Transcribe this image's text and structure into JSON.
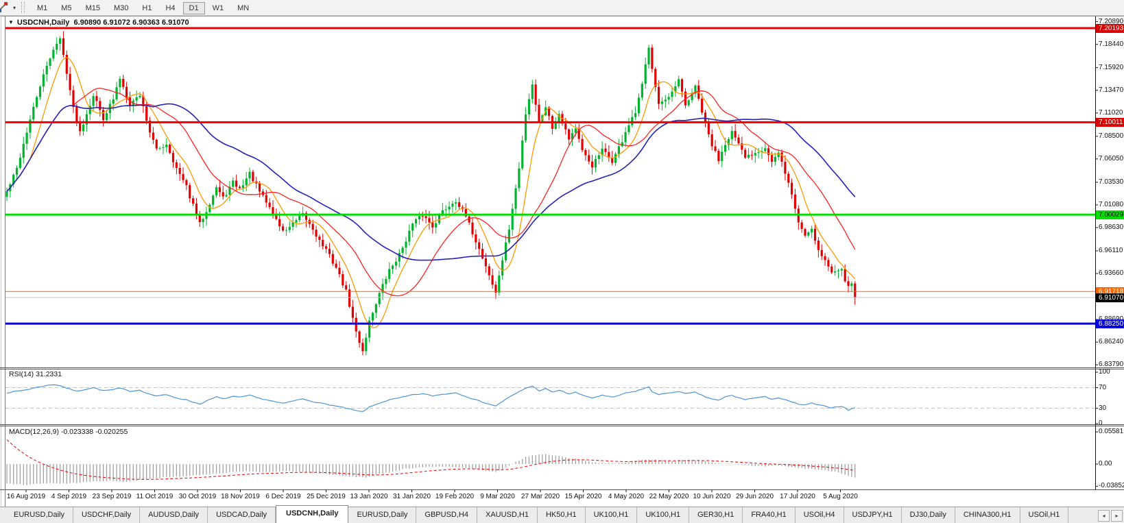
{
  "icons": {
    "chart_menu": "▼",
    "tool_dropdown": "▾",
    "tab_scroll_left": "◂",
    "tab_scroll_right": "▸"
  },
  "toolbar": {
    "timeframes": [
      "M1",
      "M5",
      "M15",
      "M30",
      "H1",
      "H4",
      "D1",
      "W1",
      "MN"
    ],
    "active_timeframe": "D1"
  },
  "chart": {
    "title_symbol": "USDCNH,Daily",
    "title_ohlc": "6.90890 6.91072 6.90363 6.91070"
  },
  "chart_data": {
    "type": "candlestick",
    "symbol": "USDCNH",
    "period": "Daily",
    "ohlc_last": {
      "open": "6.90890",
      "high": "6.91072",
      "low": "6.90363",
      "close": "6.91070"
    },
    "colors": {
      "candle_up": "#00b22d",
      "candle_down": "#e00000",
      "ma_fast": "#ff9900",
      "ma_mid": "#ff2222",
      "ma_slow": "#2222bb",
      "rsi_line": "#4d94d6",
      "macd_hist": "#a0a0a0",
      "macd_signal": "#ee1111"
    },
    "price_ticks": [
      "7.20890",
      "7.18440",
      "7.15920",
      "7.13470",
      "7.11020",
      "7.08500",
      "7.06050",
      "7.03530",
      "7.01080",
      "6.98630",
      "6.96110",
      "6.93660",
      "6.88690",
      "6.86240",
      "6.83790"
    ],
    "horizontal_lines": [
      {
        "price": 7.20193,
        "label": "7.20193",
        "color": "#ee0000",
        "badge_bg": "#dd0000",
        "badge_fg": "#ffffff",
        "width": 3
      },
      {
        "price": 7.10011,
        "label": "7.10011",
        "color": "#ee0000",
        "badge_bg": "#dd0000",
        "badge_fg": "#ffffff",
        "width": 3
      },
      {
        "price": 7.00029,
        "label": "7.00029",
        "color": "#00dd00",
        "badge_bg": "#00dd00",
        "badge_fg": "#000000",
        "width": 3
      },
      {
        "price": 6.91718,
        "label": "6.91718",
        "color": "#ff6600",
        "badge_bg": "#ff6600",
        "badge_fg": "#ffffff",
        "width": 1
      },
      {
        "price": 6.8825,
        "label": "6.88250",
        "color": "#0000ee",
        "badge_bg": "#0000dd",
        "badge_fg": "#ffffff",
        "width": 3
      }
    ],
    "current_price": {
      "value": 6.9107,
      "label": "6.91070",
      "line_color": "#c0c0c0",
      "badge_bg": "#000000",
      "badge_fg": "#ffffff"
    },
    "x_labels": [
      "16 Aug 2019",
      "4 Sep 2019",
      "23 Sep 2019",
      "11 Oct 2019",
      "30 Oct 2019",
      "18 Nov 2019",
      "6 Dec 2019",
      "25 Dec 2019",
      "13 Jan 2020",
      "31 Jan 2020",
      "19 Feb 2020",
      "9 Mar 2020",
      "27 Mar 2020",
      "15 Apr 2020",
      "4 May 2020",
      "22 May 2020",
      "10 Jun 2020",
      "29 Jun 2020",
      "17 Jul 2020",
      "5 Aug 2020"
    ],
    "close_anchors": [
      [
        0,
        7.025
      ],
      [
        3,
        7.05
      ],
      [
        6,
        7.09
      ],
      [
        10,
        7.14
      ],
      [
        14,
        7.18
      ],
      [
        16,
        7.19
      ],
      [
        18,
        7.155
      ],
      [
        20,
        7.115
      ],
      [
        22,
        7.09
      ],
      [
        26,
        7.13
      ],
      [
        29,
        7.105
      ],
      [
        32,
        7.125
      ],
      [
        34,
        7.148
      ],
      [
        37,
        7.12
      ],
      [
        40,
        7.13
      ],
      [
        43,
        7.09
      ],
      [
        45,
        7.07
      ],
      [
        48,
        7.077
      ],
      [
        51,
        7.05
      ],
      [
        54,
        7.03
      ],
      [
        57,
        7.0
      ],
      [
        58,
        6.99
      ],
      [
        60,
        7.005
      ],
      [
        63,
        7.03
      ],
      [
        65,
        7.018
      ],
      [
        68,
        7.035
      ],
      [
        70,
        7.028
      ],
      [
        73,
        7.045
      ],
      [
        76,
        7.025
      ],
      [
        79,
        7.008
      ],
      [
        81,
        6.995
      ],
      [
        83,
        6.982
      ],
      [
        86,
        6.99
      ],
      [
        89,
        7.0
      ],
      [
        92,
        6.985
      ],
      [
        94,
        6.972
      ],
      [
        96,
        6.962
      ],
      [
        99,
        6.943
      ],
      [
        102,
        6.917
      ],
      [
        105,
        6.873
      ],
      [
        107,
        6.853
      ],
      [
        109,
        6.885
      ],
      [
        112,
        6.915
      ],
      [
        115,
        6.94
      ],
      [
        118,
        6.957
      ],
      [
        122,
        6.99
      ],
      [
        125,
        7.0
      ],
      [
        128,
        6.988
      ],
      [
        131,
        7.004
      ],
      [
        135,
        7.016
      ],
      [
        138,
        6.998
      ],
      [
        141,
        6.972
      ],
      [
        144,
        6.945
      ],
      [
        147,
        6.915
      ],
      [
        148,
        6.935
      ],
      [
        151,
        6.985
      ],
      [
        154,
        7.05
      ],
      [
        156,
        7.11
      ],
      [
        158,
        7.142
      ],
      [
        159,
        7.12
      ],
      [
        160,
        7.1
      ],
      [
        162,
        7.118
      ],
      [
        164,
        7.094
      ],
      [
        166,
        7.11
      ],
      [
        169,
        7.083
      ],
      [
        171,
        7.094
      ],
      [
        173,
        7.068
      ],
      [
        176,
        7.053
      ],
      [
        179,
        7.07
      ],
      [
        182,
        7.058
      ],
      [
        185,
        7.08
      ],
      [
        186,
        7.09
      ],
      [
        189,
        7.11
      ],
      [
        191,
        7.14
      ],
      [
        193,
        7.183
      ],
      [
        194,
        7.16
      ],
      [
        196,
        7.12
      ],
      [
        199,
        7.125
      ],
      [
        202,
        7.145
      ],
      [
        204,
        7.118
      ],
      [
        207,
        7.138
      ],
      [
        210,
        7.098
      ],
      [
        212,
        7.075
      ],
      [
        214,
        7.06
      ],
      [
        216,
        7.078
      ],
      [
        218,
        7.09
      ],
      [
        220,
        7.075
      ],
      [
        222,
        7.062
      ],
      [
        225,
        7.068
      ],
      [
        228,
        7.073
      ],
      [
        230,
        7.057
      ],
      [
        232,
        7.066
      ],
      [
        234,
        7.046
      ],
      [
        236,
        7.022
      ],
      [
        238,
        6.992
      ],
      [
        240,
        6.978
      ],
      [
        242,
        6.986
      ],
      [
        244,
        6.962
      ],
      [
        246,
        6.951
      ],
      [
        248,
        6.937
      ],
      [
        251,
        6.944
      ],
      [
        252,
        6.93
      ],
      [
        253,
        6.921
      ],
      [
        254,
        6.928
      ],
      [
        255,
        6.911
      ]
    ],
    "moving_averages": [
      {
        "name": "fast",
        "period": 8
      },
      {
        "name": "mid",
        "period": 21
      },
      {
        "name": "slow",
        "period": 45
      }
    ],
    "rsi": {
      "label": "RSI(14) 31.2331",
      "value": 31.2331,
      "axis": [
        "100",
        "70",
        "30",
        "0"
      ],
      "levels": [
        70,
        30
      ],
      "anchors": [
        [
          0,
          60
        ],
        [
          6,
          66
        ],
        [
          10,
          72
        ],
        [
          14,
          76
        ],
        [
          16,
          74
        ],
        [
          18,
          69
        ],
        [
          21,
          63
        ],
        [
          26,
          70
        ],
        [
          29,
          64
        ],
        [
          32,
          66
        ],
        [
          34,
          69
        ],
        [
          37,
          63
        ],
        [
          40,
          65
        ],
        [
          43,
          57
        ],
        [
          45,
          54
        ],
        [
          48,
          56
        ],
        [
          51,
          50
        ],
        [
          54,
          46
        ],
        [
          58,
          38
        ],
        [
          60,
          44
        ],
        [
          63,
          52
        ],
        [
          65,
          48
        ],
        [
          68,
          53
        ],
        [
          70,
          51
        ],
        [
          73,
          55
        ],
        [
          76,
          49
        ],
        [
          79,
          45
        ],
        [
          81,
          42
        ],
        [
          83,
          39
        ],
        [
          86,
          44
        ],
        [
          89,
          48
        ],
        [
          92,
          43
        ],
        [
          94,
          40
        ],
        [
          96,
          38
        ],
        [
          99,
          34
        ],
        [
          102,
          30
        ],
        [
          105,
          25
        ],
        [
          107,
          23
        ],
        [
          109,
          32
        ],
        [
          112,
          40
        ],
        [
          115,
          46
        ],
        [
          118,
          50
        ],
        [
          122,
          56
        ],
        [
          125,
          58
        ],
        [
          128,
          54
        ],
        [
          131,
          57
        ],
        [
          135,
          60
        ],
        [
          138,
          53
        ],
        [
          141,
          46
        ],
        [
          144,
          40
        ],
        [
          147,
          34
        ],
        [
          148,
          39
        ],
        [
          151,
          51
        ],
        [
          154,
          62
        ],
        [
          156,
          69
        ],
        [
          158,
          73
        ],
        [
          160,
          64
        ],
        [
          162,
          68
        ],
        [
          164,
          61
        ],
        [
          166,
          65
        ],
        [
          169,
          58
        ],
        [
          171,
          61
        ],
        [
          173,
          55
        ],
        [
          176,
          50
        ],
        [
          179,
          55
        ],
        [
          182,
          51
        ],
        [
          185,
          57
        ],
        [
          186,
          59
        ],
        [
          189,
          63
        ],
        [
          191,
          67
        ],
        [
          193,
          71
        ],
        [
          194,
          62
        ],
        [
          196,
          57
        ],
        [
          199,
          59
        ],
        [
          202,
          63
        ],
        [
          204,
          58
        ],
        [
          207,
          61
        ],
        [
          210,
          52
        ],
        [
          212,
          48
        ],
        [
          214,
          45
        ],
        [
          216,
          52
        ],
        [
          218,
          55
        ],
        [
          220,
          50
        ],
        [
          222,
          47
        ],
        [
          225,
          50
        ],
        [
          228,
          52
        ],
        [
          230,
          48
        ],
        [
          232,
          50
        ],
        [
          234,
          46
        ],
        [
          236,
          42
        ],
        [
          238,
          38
        ],
        [
          240,
          36
        ],
        [
          242,
          40
        ],
        [
          244,
          36
        ],
        [
          246,
          34
        ],
        [
          248,
          31
        ],
        [
          251,
          34
        ],
        [
          252,
          30
        ],
        [
          253,
          26
        ],
        [
          254,
          29
        ],
        [
          255,
          31
        ]
      ]
    },
    "macd": {
      "label": "MACD(12,26,9) -0.023338 -0.020255",
      "macd_value": -0.023338,
      "signal_value": -0.020255,
      "axis": [
        "0.05581",
        "0.00",
        "-0.038524"
      ],
      "anchors": [
        [
          0,
          -0.034
        ],
        [
          6,
          -0.036
        ],
        [
          12,
          -0.033
        ],
        [
          18,
          -0.034
        ],
        [
          24,
          -0.031
        ],
        [
          30,
          -0.029
        ],
        [
          36,
          -0.031
        ],
        [
          42,
          -0.026
        ],
        [
          48,
          -0.023
        ],
        [
          54,
          -0.021
        ],
        [
          60,
          -0.018
        ],
        [
          66,
          -0.015
        ],
        [
          72,
          -0.013
        ],
        [
          78,
          -0.014
        ],
        [
          84,
          -0.012
        ],
        [
          90,
          -0.014
        ],
        [
          96,
          -0.017
        ],
        [
          100,
          -0.02
        ],
        [
          104,
          -0.022
        ],
        [
          108,
          -0.023
        ],
        [
          112,
          -0.018
        ],
        [
          116,
          -0.013
        ],
        [
          120,
          -0.008
        ],
        [
          124,
          -0.006
        ],
        [
          128,
          -0.005
        ],
        [
          132,
          -0.004
        ],
        [
          136,
          -0.006
        ],
        [
          140,
          -0.009
        ],
        [
          144,
          -0.012
        ],
        [
          147,
          -0.014
        ],
        [
          150,
          -0.007
        ],
        [
          153,
          0.004
        ],
        [
          156,
          0.012
        ],
        [
          159,
          0.016
        ],
        [
          162,
          0.017
        ],
        [
          165,
          0.015
        ],
        [
          168,
          0.012
        ],
        [
          171,
          0.009
        ],
        [
          174,
          0.006
        ],
        [
          177,
          0.003
        ],
        [
          180,
          0.001
        ],
        [
          183,
          0.001
        ],
        [
          186,
          0.003
        ],
        [
          189,
          0.006
        ],
        [
          192,
          0.008
        ],
        [
          195,
          0.008
        ],
        [
          198,
          0.006
        ],
        [
          201,
          0.006
        ],
        [
          204,
          0.007
        ],
        [
          207,
          0.007
        ],
        [
          210,
          0.005
        ],
        [
          213,
          0.002
        ],
        [
          216,
          0.001
        ],
        [
          219,
          0.0
        ],
        [
          222,
          -0.002
        ],
        [
          225,
          -0.004
        ],
        [
          228,
          -0.004
        ],
        [
          231,
          -0.003
        ],
        [
          234,
          -0.004
        ],
        [
          237,
          -0.006
        ],
        [
          240,
          -0.008
        ],
        [
          243,
          -0.009
        ],
        [
          246,
          -0.011
        ],
        [
          249,
          -0.013
        ],
        [
          251,
          -0.016
        ],
        [
          253,
          -0.02
        ],
        [
          255,
          -0.0233
        ]
      ]
    }
  },
  "tabs": {
    "items": [
      "EURUSD,Daily",
      "USDCHF,Daily",
      "AUDUSD,Daily",
      "USDCAD,Daily",
      "USDCNH,Daily",
      "EURUSD,Daily",
      "GBPUSD,H4",
      "XAUUSD,H1",
      "HK50,H1",
      "UK100,H1",
      "UK100,H1",
      "GER30,H1",
      "FRA40,H1",
      "USOil,H4",
      "USDJPY,H1",
      "DJ30,Daily",
      "CHINA300,H1",
      "USOil,H1"
    ],
    "active_index": 4
  }
}
